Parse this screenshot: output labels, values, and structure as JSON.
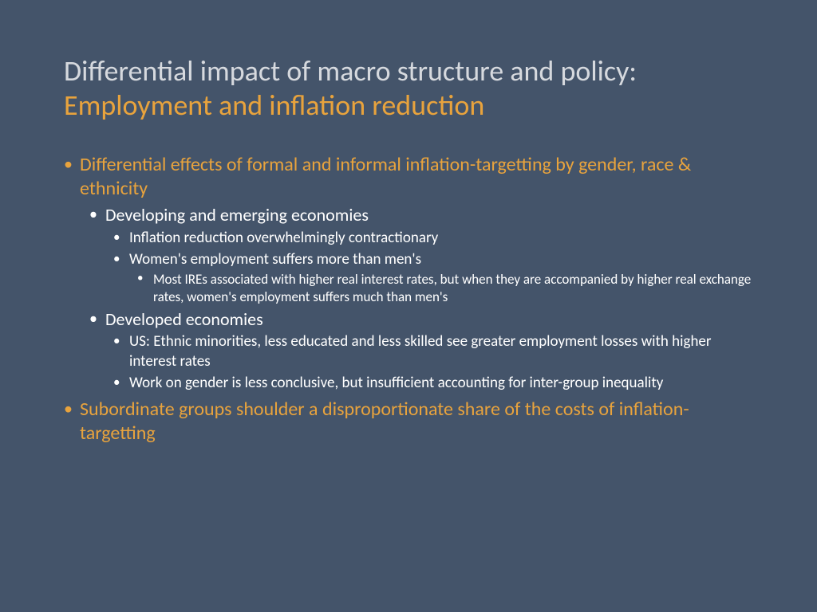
{
  "colors": {
    "background": "#44546a",
    "accent": "#e8a33d",
    "title_grey": "#d6d9de",
    "body_text": "#ffffff"
  },
  "title": {
    "line1": "Differential impact of macro structure and policy:",
    "line2": "Employment and inflation reduction"
  },
  "bullets": {
    "b1": "Differential effects of formal and informal inflation-targetting by gender, race & ethnicity",
    "b1_1": "Developing and emerging economies",
    "b1_1_1": "Inflation reduction overwhelmingly contractionary",
    "b1_1_2": "Women's employment suffers more than men's",
    "b1_1_2_1": "Most IREs associated with higher real interest rates, but when they are accompanied by higher real exchange rates, women's employment suffers much than men's",
    "b1_2": "Developed economies",
    "b1_2_1": "US: Ethnic minorities, less educated and less skilled see greater employment losses with higher interest rates",
    "b1_2_2": "Work on gender is less conclusive, but insufficient accounting for inter-group inequality",
    "b2": "Subordinate groups shoulder a disproportionate share of the costs of inflation-targetting"
  }
}
